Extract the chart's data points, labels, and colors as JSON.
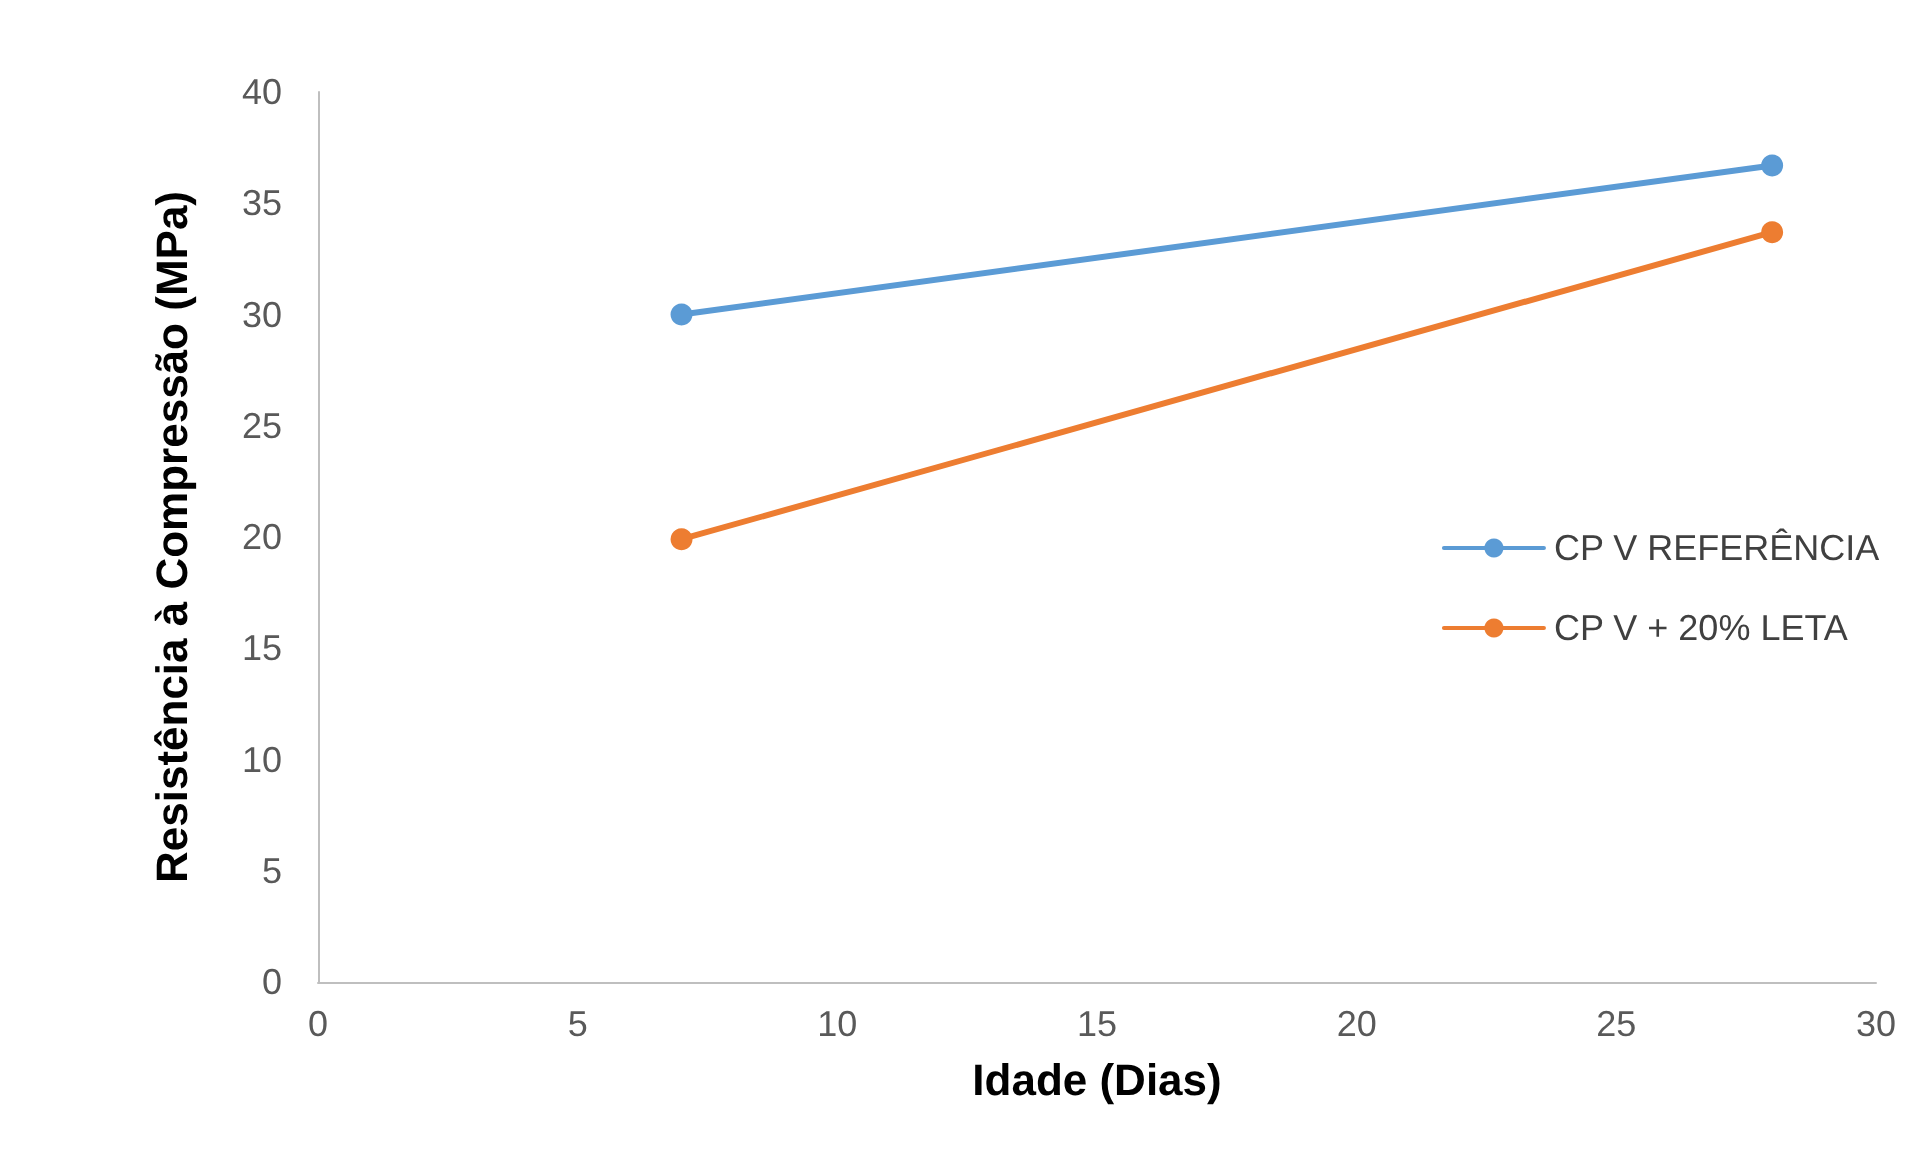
{
  "chart_data": {
    "type": "line",
    "xlabel": "Idade (Dias)",
    "ylabel": "Resistência à Compressão (MPa)",
    "x": [
      7,
      28
    ],
    "series": [
      {
        "name": "CP V REFERÊNCIA",
        "color": "#5b9bd5",
        "values": [
          30.0,
          36.7
        ]
      },
      {
        "name": "CP V + 20% LETA",
        "color": "#ed7d31",
        "values": [
          19.9,
          33.7
        ]
      }
    ],
    "xlim": [
      0,
      30
    ],
    "xticks": [
      0,
      5,
      10,
      15,
      20,
      25,
      30
    ],
    "ylim": [
      0,
      40
    ],
    "yticks": [
      0,
      5,
      10,
      15,
      20,
      25,
      30,
      35,
      40
    ],
    "grid": false,
    "legend": "right",
    "marker": "circle",
    "line_style": "solid"
  }
}
